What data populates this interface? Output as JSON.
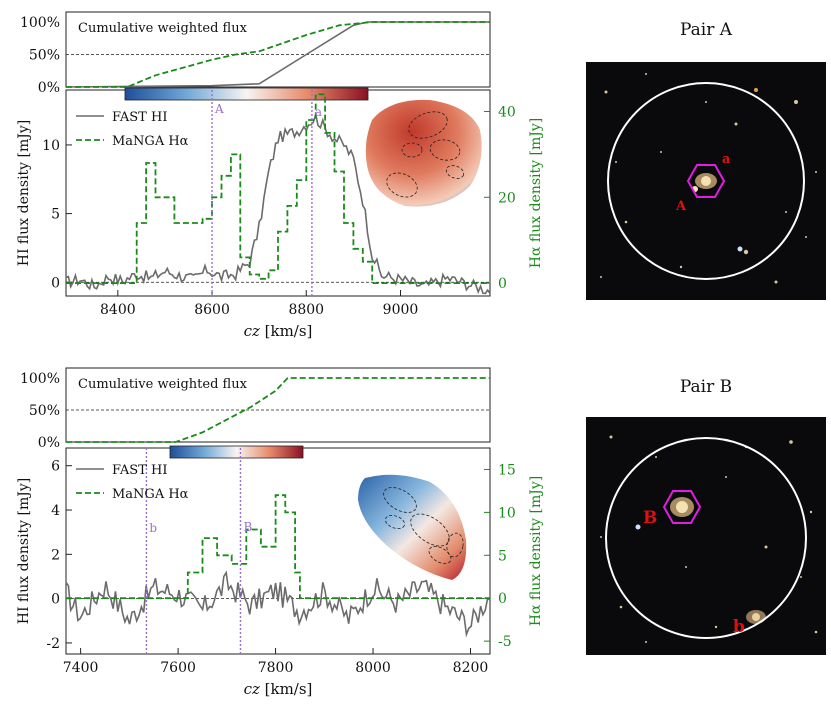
{
  "pair_a": {
    "title": "Pair A",
    "cum_label": "Cumulative weighted flux",
    "cum_ticks": [
      "100%",
      "50%",
      "0%"
    ],
    "legend": [
      "FAST HI",
      "MaNGA Hα"
    ],
    "xlabel_cz": "cz",
    "xlabel_unit": " [km/s]",
    "ylabel_left": "HI flux density [mJy]",
    "ylabel_right": "Hα flux density [mJy]",
    "marker_labels": [
      "A",
      "a"
    ],
    "image_labels": [
      "a",
      "A"
    ]
  },
  "pair_b": {
    "title": "Pair B",
    "cum_label": "Cumulative weighted flux",
    "cum_ticks": [
      "100%",
      "50%",
      "0%"
    ],
    "legend": [
      "FAST HI",
      "MaNGA Hα"
    ],
    "xlabel_cz": "cz",
    "xlabel_unit": " [km/s]",
    "ylabel_left": "HI flux density [mJy]",
    "ylabel_right": "Hα flux density [mJy]",
    "marker_labels": [
      "b",
      "B"
    ],
    "image_labels": [
      "B",
      "b"
    ]
  },
  "colors": {
    "hi": "#6b6b6b",
    "ha": "#1a8a1a",
    "marker": "#9b6fd0",
    "hexagon": "#e01ee0",
    "label_red": "#e01010",
    "ring": "#ffffff"
  },
  "chart_data": [
    {
      "type": "line",
      "title": "Pair A",
      "xlabel": "cz [km/s]",
      "ylabel": "HI flux density [mJy]",
      "ylabel_right": "Hα flux density [mJy]",
      "xlim": [
        8290,
        9190
      ],
      "ylim": [
        -1,
        14
      ],
      "ylim_right": [
        -3,
        45
      ],
      "x_ticks": [
        8400,
        8600,
        8800,
        9000
      ],
      "y_ticks": [
        0,
        5,
        10
      ],
      "y_ticks_right": [
        0,
        20,
        40
      ],
      "markers": [
        {
          "label": "A",
          "x": 8600
        },
        {
          "label": "a",
          "x": 8812
        }
      ],
      "series": [
        {
          "name": "FAST HI",
          "x": [
            8290,
            8320,
            8350,
            8380,
            8410,
            8440,
            8470,
            8500,
            8530,
            8560,
            8590,
            8620,
            8650,
            8680,
            8700,
            8720,
            8740,
            8760,
            8780,
            8800,
            8820,
            8840,
            8860,
            8880,
            8900,
            8920,
            8940,
            8960,
            9000,
            9050,
            9100,
            9190
          ],
          "values": [
            0,
            0.2,
            -0.3,
            0.4,
            0.1,
            0.6,
            0.3,
            0.8,
            0.5,
            0.2,
            0.9,
            0.4,
            0.6,
            1.5,
            4.0,
            8.0,
            10.5,
            10.8,
            11.0,
            11.5,
            12.0,
            11.2,
            10.5,
            10.0,
            9.0,
            6.0,
            2.0,
            0.5,
            0.2,
            -0.3,
            0.3,
            -0.6
          ]
        },
        {
          "name": "MaNGA Hα",
          "x": [
            8290,
            8420,
            8440,
            8460,
            8480,
            8520,
            8580,
            8600,
            8620,
            8640,
            8660,
            8680,
            8700,
            8720,
            8740,
            8760,
            8780,
            8800,
            8820,
            8840,
            8860,
            8880,
            8900,
            8920,
            8940,
            9190
          ],
          "values": [
            0,
            0,
            14,
            28,
            20,
            14,
            15,
            20,
            25,
            30,
            6,
            2,
            1,
            3,
            12,
            18,
            24,
            38,
            44,
            35,
            26,
            14,
            8,
            5,
            0,
            0
          ]
        },
        {
          "name": "Cumulative HI",
          "x": [
            8290,
            8600,
            8700,
            8800,
            8900,
            8930,
            9190
          ],
          "values": [
            0,
            0.02,
            0.05,
            0.5,
            0.95,
            1.0,
            1.0
          ]
        },
        {
          "name": "Cumulative Hα",
          "x": [
            8290,
            8420,
            8480,
            8600,
            8650,
            8700,
            8800,
            8870,
            8940,
            9190
          ],
          "values": [
            0,
            0,
            0.18,
            0.42,
            0.5,
            0.55,
            0.8,
            0.95,
            1.0,
            1.0
          ]
        }
      ]
    },
    {
      "type": "line",
      "title": "Pair B",
      "xlabel": "cz [km/s]",
      "ylabel": "HI flux density [mJy]",
      "ylabel_right": "Hα flux density [mJy]",
      "xlim": [
        7370,
        8240
      ],
      "ylim": [
        -2.5,
        6.8
      ],
      "ylim_right": [
        -6.5,
        17.5
      ],
      "x_ticks": [
        7400,
        7600,
        7800,
        8000,
        8200
      ],
      "y_ticks": [
        -2,
        0,
        2,
        4,
        6
      ],
      "y_ticks_right": [
        -5,
        0,
        5,
        10,
        15
      ],
      "markers": [
        {
          "label": "b",
          "x": 7535
        },
        {
          "label": "B",
          "x": 7728
        }
      ],
      "series": [
        {
          "name": "FAST HI",
          "x": [
            7370,
            7400,
            7450,
            7500,
            7550,
            7600,
            7650,
            7700,
            7750,
            7800,
            7850,
            7900,
            7950,
            8000,
            8050,
            8100,
            8150,
            8200,
            8240
          ],
          "values": [
            0.3,
            -0.8,
            0.6,
            -1.0,
            0.5,
            0.2,
            -0.5,
            0.7,
            -0.3,
            0.4,
            -0.6,
            0.3,
            -0.9,
            0.5,
            -0.2,
            0.6,
            -0.4,
            -1.2,
            0.2
          ]
        },
        {
          "name": "MaNGA Hα",
          "x": [
            7370,
            7600,
            7620,
            7650,
            7680,
            7710,
            7740,
            7770,
            7800,
            7820,
            7840,
            7850,
            8240
          ],
          "values": [
            0,
            0,
            3,
            7,
            5,
            4,
            8,
            6,
            12,
            10,
            3,
            0,
            0
          ]
        },
        {
          "name": "Cumulative Hα",
          "x": [
            7370,
            7595,
            7650,
            7700,
            7750,
            7800,
            7825,
            8240
          ],
          "values": [
            0,
            0,
            0.15,
            0.35,
            0.55,
            0.8,
            1.0,
            1.0
          ]
        }
      ]
    }
  ]
}
